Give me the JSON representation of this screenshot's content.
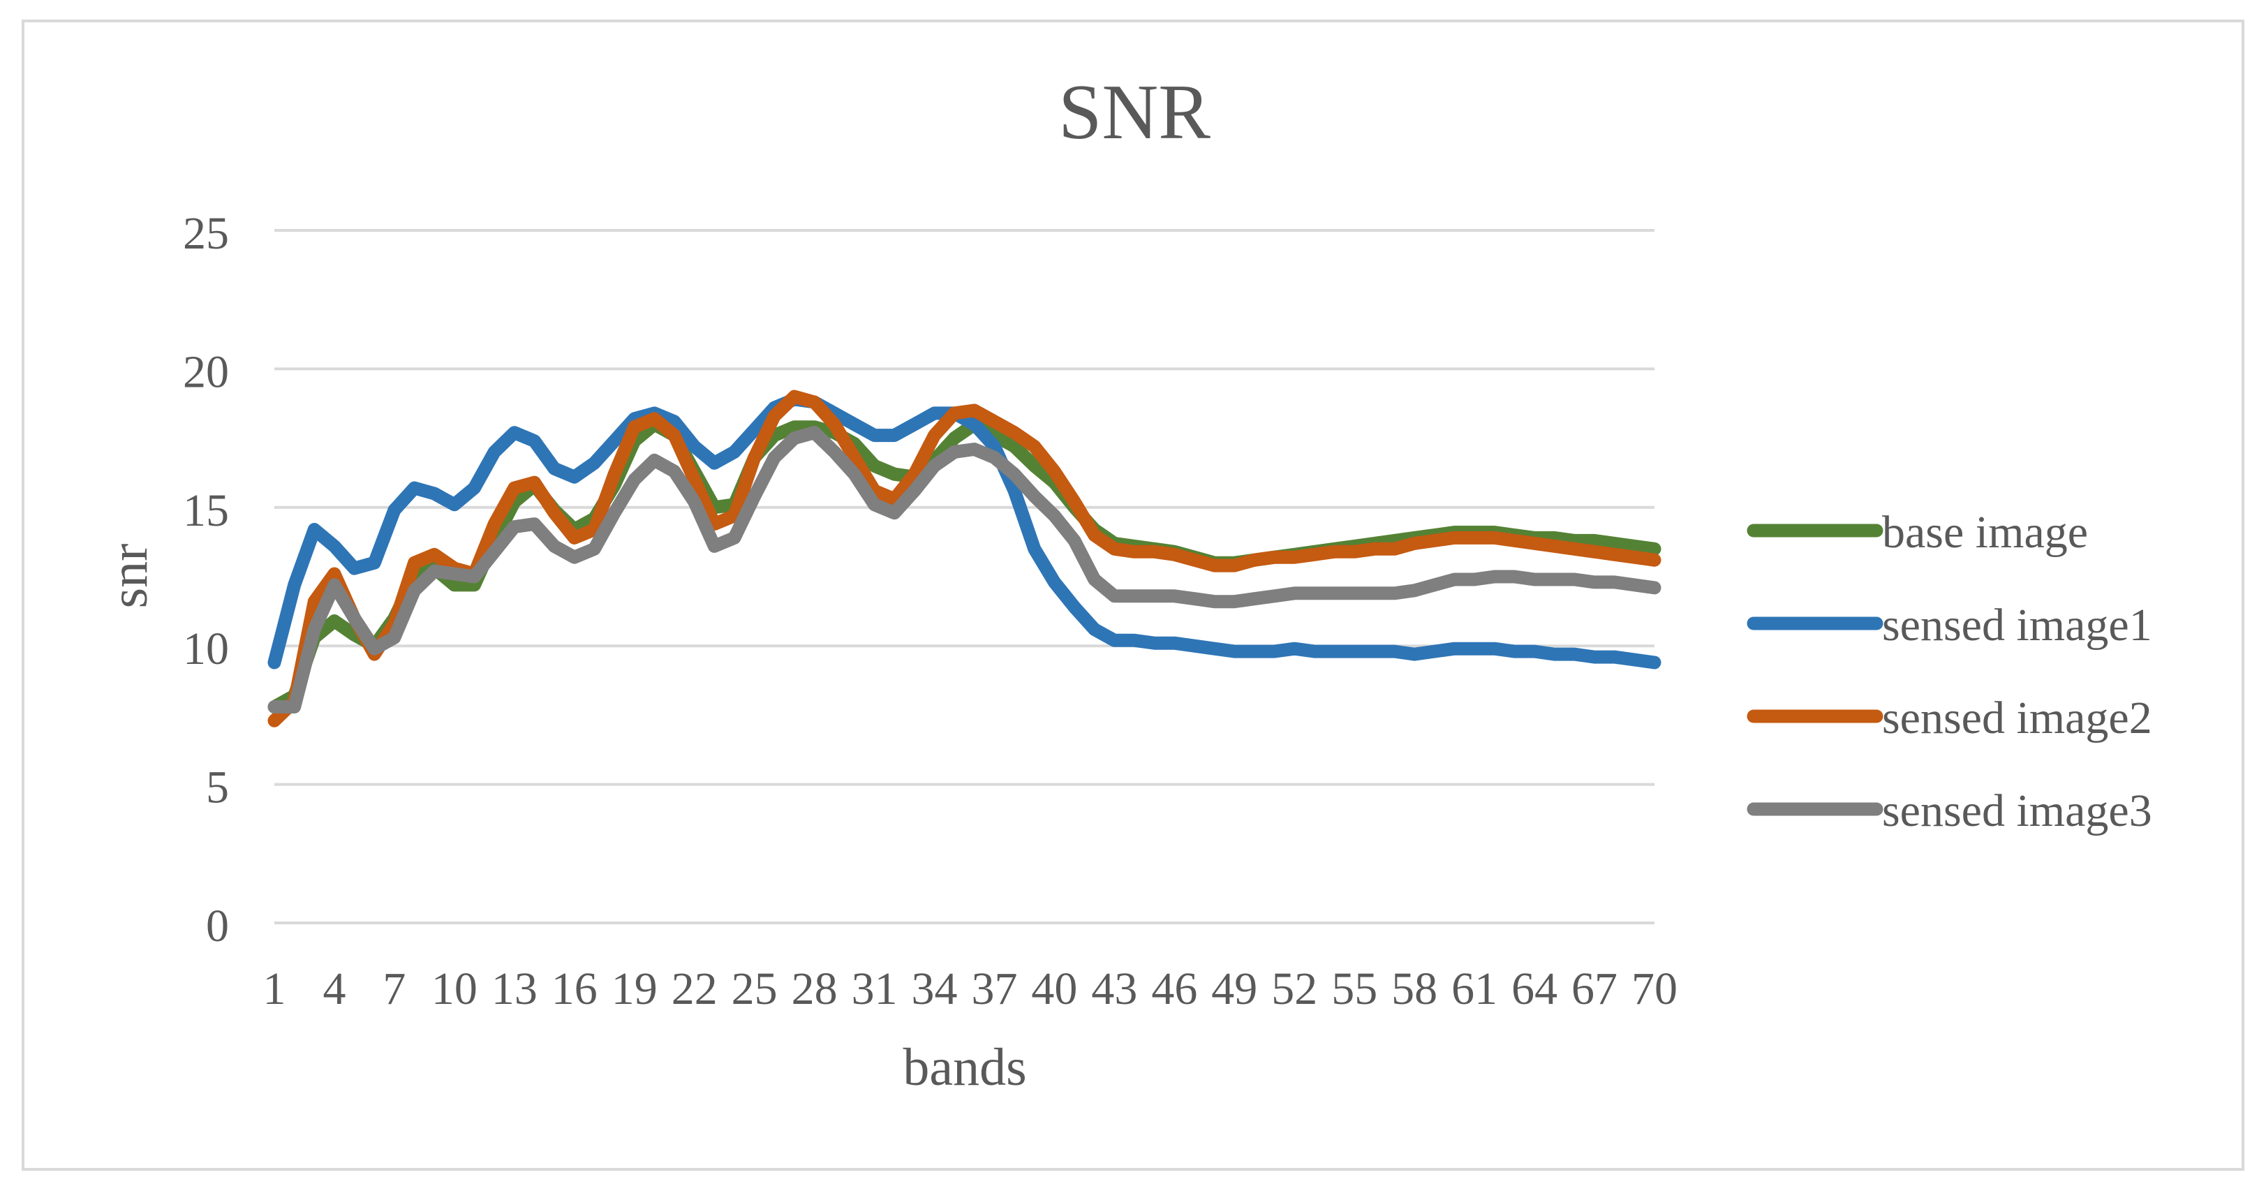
{
  "chart_data": {
    "type": "line",
    "title": "SNR",
    "xlabel": "bands",
    "ylabel": "snr",
    "ylim": [
      0,
      25
    ],
    "yticks": [
      0,
      5,
      10,
      15,
      20,
      25
    ],
    "x": [
      1,
      2,
      3,
      4,
      5,
      6,
      7,
      8,
      9,
      10,
      11,
      12,
      13,
      14,
      15,
      16,
      17,
      18,
      19,
      20,
      21,
      22,
      23,
      24,
      25,
      26,
      27,
      28,
      29,
      30,
      31,
      32,
      33,
      34,
      35,
      36,
      37,
      38,
      39,
      40,
      41,
      42,
      43,
      44,
      45,
      46,
      47,
      48,
      49,
      50,
      51,
      52,
      53,
      54,
      55,
      56,
      57,
      58,
      59,
      60,
      61,
      62,
      63,
      64,
      65,
      66,
      67,
      68,
      69,
      70
    ],
    "xtick_labels": [
      "1",
      "4",
      "7",
      "10",
      "13",
      "16",
      "19",
      "22",
      "25",
      "28",
      "31",
      "34",
      "37",
      "40",
      "43",
      "46",
      "49",
      "52",
      "55",
      "58",
      "61",
      "64",
      "67",
      "70"
    ],
    "grid": true,
    "legend_position": "right",
    "series": [
      {
        "name": "base image",
        "color": "#548235",
        "values": [
          7.8,
          8.2,
          10.3,
          10.9,
          10.4,
          10.0,
          11.0,
          12.5,
          12.8,
          12.2,
          12.2,
          13.8,
          15.2,
          15.8,
          14.9,
          14.2,
          14.6,
          15.8,
          17.4,
          18.0,
          17.6,
          16.3,
          15.0,
          15.1,
          16.8,
          17.6,
          17.9,
          17.9,
          17.7,
          17.3,
          16.5,
          16.2,
          16.1,
          16.7,
          17.5,
          18.0,
          17.6,
          17.2,
          16.5,
          15.9,
          15.0,
          14.2,
          13.7,
          13.6,
          13.5,
          13.4,
          13.2,
          13.0,
          13.0,
          13.1,
          13.2,
          13.3,
          13.4,
          13.5,
          13.6,
          13.7,
          13.8,
          13.9,
          14.0,
          14.1,
          14.1,
          14.1,
          14.0,
          13.9,
          13.9,
          13.8,
          13.8,
          13.7,
          13.6,
          13.5
        ]
      },
      {
        "name": "sensed image1",
        "color": "#2E75B6",
        "values": [
          9.4,
          12.2,
          14.2,
          13.6,
          12.8,
          13.0,
          14.9,
          15.7,
          15.5,
          15.1,
          15.7,
          17.0,
          17.7,
          17.4,
          16.4,
          16.1,
          16.6,
          17.4,
          18.2,
          18.4,
          18.1,
          17.2,
          16.6,
          17.0,
          17.8,
          18.6,
          18.9,
          18.8,
          18.4,
          18.0,
          17.6,
          17.6,
          18.0,
          18.4,
          18.4,
          18.0,
          17.2,
          15.6,
          13.5,
          12.3,
          11.4,
          10.6,
          10.2,
          10.2,
          10.1,
          10.1,
          10.0,
          9.9,
          9.8,
          9.8,
          9.8,
          9.9,
          9.8,
          9.8,
          9.8,
          9.8,
          9.8,
          9.7,
          9.8,
          9.9,
          9.9,
          9.9,
          9.8,
          9.8,
          9.7,
          9.7,
          9.6,
          9.6,
          9.5,
          9.4
        ]
      },
      {
        "name": "sensed image2",
        "color": "#C55A11",
        "values": [
          7.3,
          8.0,
          11.6,
          12.6,
          11.0,
          9.7,
          10.8,
          13.0,
          13.3,
          12.8,
          12.6,
          14.4,
          15.7,
          15.9,
          14.8,
          13.9,
          14.2,
          16.2,
          17.9,
          18.2,
          17.6,
          16.0,
          14.4,
          14.7,
          16.8,
          18.3,
          19.0,
          18.8,
          18.0,
          16.8,
          15.6,
          15.3,
          16.2,
          17.6,
          18.4,
          18.5,
          18.1,
          17.7,
          17.2,
          16.3,
          15.2,
          14.0,
          13.5,
          13.4,
          13.4,
          13.3,
          13.1,
          12.9,
          12.9,
          13.1,
          13.2,
          13.2,
          13.3,
          13.4,
          13.4,
          13.5,
          13.5,
          13.7,
          13.8,
          13.9,
          13.9,
          13.9,
          13.8,
          13.7,
          13.6,
          13.5,
          13.4,
          13.3,
          13.2,
          13.1
        ]
      },
      {
        "name": "sensed image3",
        "color": "#7F7F7F",
        "values": [
          7.8,
          7.8,
          10.6,
          12.2,
          11.0,
          9.9,
          10.3,
          12.0,
          12.7,
          12.6,
          12.5,
          13.4,
          14.3,
          14.4,
          13.6,
          13.2,
          13.5,
          14.8,
          16.0,
          16.7,
          16.3,
          15.2,
          13.6,
          13.9,
          15.4,
          16.8,
          17.5,
          17.7,
          17.0,
          16.2,
          15.1,
          14.8,
          15.6,
          16.5,
          17.0,
          17.1,
          16.8,
          16.2,
          15.4,
          14.7,
          13.8,
          12.4,
          11.8,
          11.8,
          11.8,
          11.8,
          11.7,
          11.6,
          11.6,
          11.7,
          11.8,
          11.9,
          11.9,
          11.9,
          11.9,
          11.9,
          11.9,
          12.0,
          12.2,
          12.4,
          12.4,
          12.5,
          12.5,
          12.4,
          12.4,
          12.4,
          12.3,
          12.3,
          12.2,
          12.1
        ]
      }
    ]
  }
}
